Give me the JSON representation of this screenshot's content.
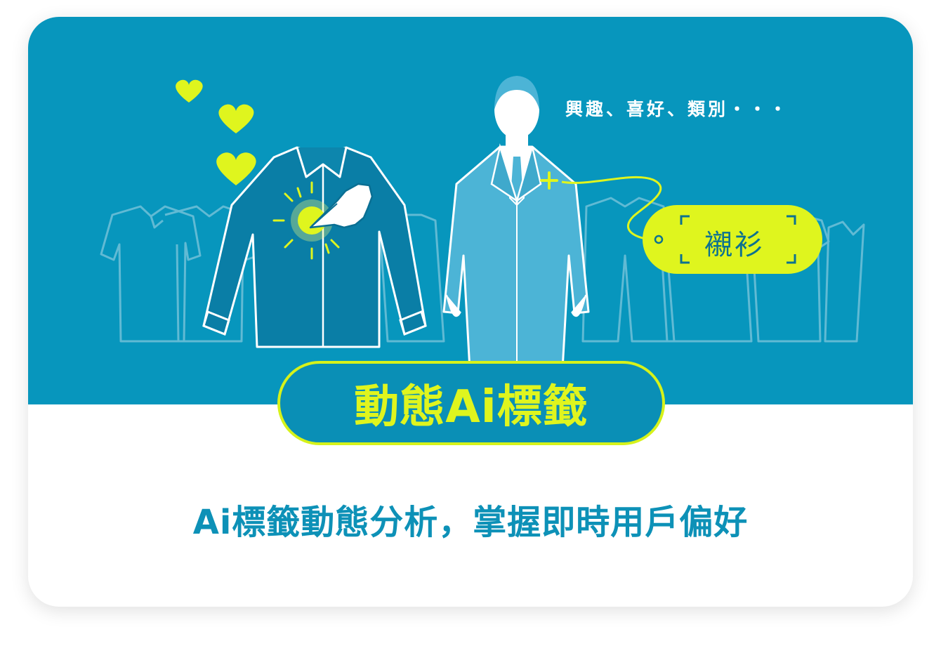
{
  "banner": {
    "interest_text": "興趣、喜好、類別・・・",
    "tag_label": "襯衫",
    "title": "動態Ai標籤"
  },
  "subtitle": "Ai標籤動態分析，掌握即時用戶偏好",
  "colors": {
    "banner_background": "#0796bd",
    "accent_yellow": "#dff51e",
    "subtitle_text": "#0d91b7",
    "tag_text": "#0c7190"
  },
  "icons": [
    "heart-icon",
    "shirt-icon",
    "pointing-hand-icon",
    "businessman-icon",
    "tag-icon"
  ]
}
